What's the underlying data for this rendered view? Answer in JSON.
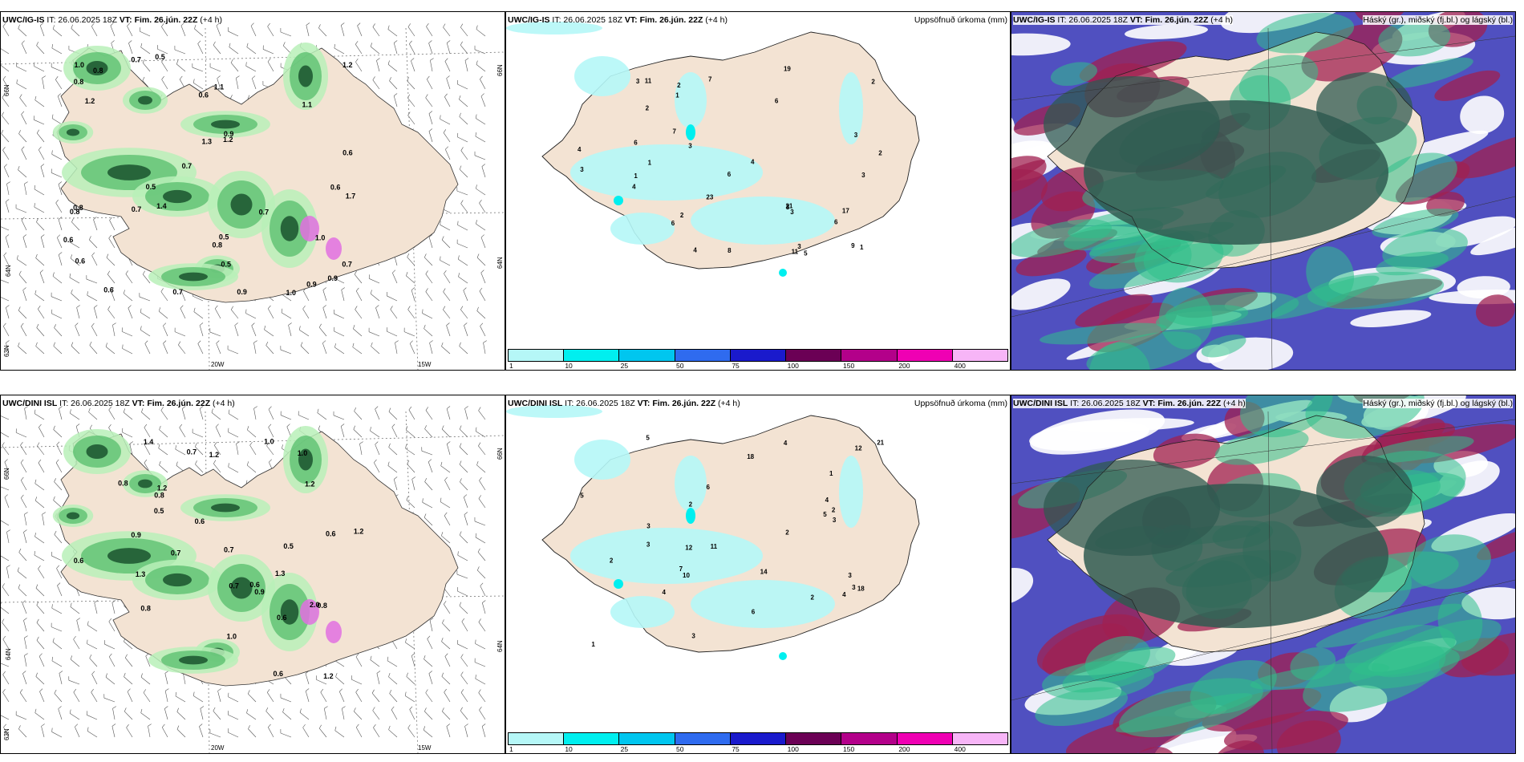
{
  "panels": [
    {
      "id": "p1",
      "model_label": "UWC/IG-IS",
      "it_text": "IT: 26.06.2025 18Z",
      "vt_label": "VT: Fim. 26.jún. 22Z",
      "lead": "(+4 h)",
      "right_title": "",
      "axis_labels": {
        "lat_top": "66N",
        "lat_mid": "64N",
        "lat_bot": "63N",
        "lon_left": "20W",
        "lon_right": "15W"
      },
      "values": [
        "0.7",
        "0.8",
        "0.6",
        "0.8",
        "0.5",
        "0.7",
        "1.2",
        "0.6",
        "0.5",
        "0.7",
        "0.6",
        "0.9",
        "0.7",
        "0.8",
        "0.9",
        "1.1",
        "1.0",
        "1.2",
        "0.7",
        "0.5",
        "0.6",
        "1.0",
        "0.6",
        "1.1",
        "0.5",
        "0.9",
        "1.3",
        "0.8",
        "1.7",
        "0.7",
        "0.9",
        "1.4",
        "1.2",
        "0.6",
        "0.8",
        "1.0"
      ]
    },
    {
      "id": "p2",
      "model_label": "UWC/IG-IS",
      "it_text": "IT: 26.06.2025 18Z",
      "vt_label": "VT: Fim. 26.jún. 22Z",
      "lead": "(+4 h)",
      "right_title": "Uppsöfnuð úrkoma (mm)",
      "colorbar_labels": [
        "1",
        "10",
        "25",
        "50",
        "75",
        "100",
        "150",
        "200",
        "400"
      ],
      "values": [
        "2",
        "3",
        "1",
        "4",
        "6",
        "6",
        "7",
        "6",
        "4",
        "23",
        "21",
        "17",
        "11",
        "9",
        "2",
        "3",
        "19",
        "3",
        "6",
        "8",
        "11",
        "5",
        "4",
        "6",
        "2",
        "3",
        "1",
        "7",
        "3",
        "4",
        "1",
        "2",
        "3",
        "3",
        "2",
        "1",
        "3"
      ]
    },
    {
      "id": "p3",
      "model_label": "UWC/IG-IS",
      "it_text": "IT: 26.06.2025 18Z",
      "vt_label": "VT: Fim. 26.jún. 22Z",
      "lead": "(+4 h)",
      "right_title": "Háský (gr.), miðský (fj.bl.) og lágský (bl.)"
    },
    {
      "id": "p4",
      "model_label": "UWC/DINI ISL",
      "it_text": "IT: 26.06.2025 18Z",
      "vt_label": "VT: Fim. 26.jún. 22Z",
      "lead": "(+4 h)",
      "right_title": "",
      "axis_labels": {
        "lat_top": "66N",
        "lat_mid": "64N",
        "lat_bot": "63N",
        "lon_left": "20W",
        "lon_right": "15W"
      },
      "values": [
        "0.9",
        "2.0",
        "0.8",
        "1.2",
        "0.7",
        "0.5",
        "1.0",
        "1.3",
        "1.2",
        "0.7",
        "0.9",
        "1.2",
        "0.6",
        "0.8",
        "0.7",
        "1.3",
        "0.6",
        "1.0",
        "0.8",
        "0.7",
        "0.6",
        "0.8",
        "0.5",
        "1.0",
        "0.6",
        "0.6",
        "1.2",
        "1.4",
        "0.6",
        "1.2"
      ]
    },
    {
      "id": "p5",
      "model_label": "UWC/DINI ISL",
      "it_text": "IT: 26.06.2025 18Z",
      "vt_label": "VT: Fim. 26.jún. 22Z",
      "lead": "(+4 h)",
      "right_title": "Uppsöfnuð úrkoma (mm)",
      "colorbar_labels": [
        "1",
        "10",
        "25",
        "50",
        "75",
        "100",
        "150",
        "200",
        "400"
      ],
      "values": [
        "2",
        "3",
        "1",
        "3",
        "5",
        "6",
        "4",
        "21",
        "18",
        "12",
        "4",
        "3",
        "5",
        "2",
        "6",
        "4",
        "3",
        "12",
        "18",
        "5",
        "14",
        "11",
        "10",
        "7",
        "3",
        "2",
        "3",
        "4",
        "2",
        "1",
        "2"
      ]
    },
    {
      "id": "p6",
      "model_label": "UWC/DINI ISL",
      "it_text": "IT: 26.06.2025 18Z",
      "vt_label": "VT: Fim. 26.jún. 22Z",
      "lead": "(+4 h)",
      "right_title": "Háský (gr.), miðský (fj.bl.) og lágský (bl.)"
    }
  ],
  "colors": {
    "land": "#f3e3d3",
    "precip_scale": [
      "#b5f7f7",
      "#00efef",
      "#00c6ef",
      "#2f6bef",
      "#1a1acc",
      "#6b0055",
      "#b3008a",
      "#ef00b3",
      "#f7b5f7"
    ],
    "cloud_high": "#2f5a50",
    "cloud_mid": "#2fc08a",
    "cloud_low": "#5050c0",
    "cloud_high_red": "#a02050"
  }
}
